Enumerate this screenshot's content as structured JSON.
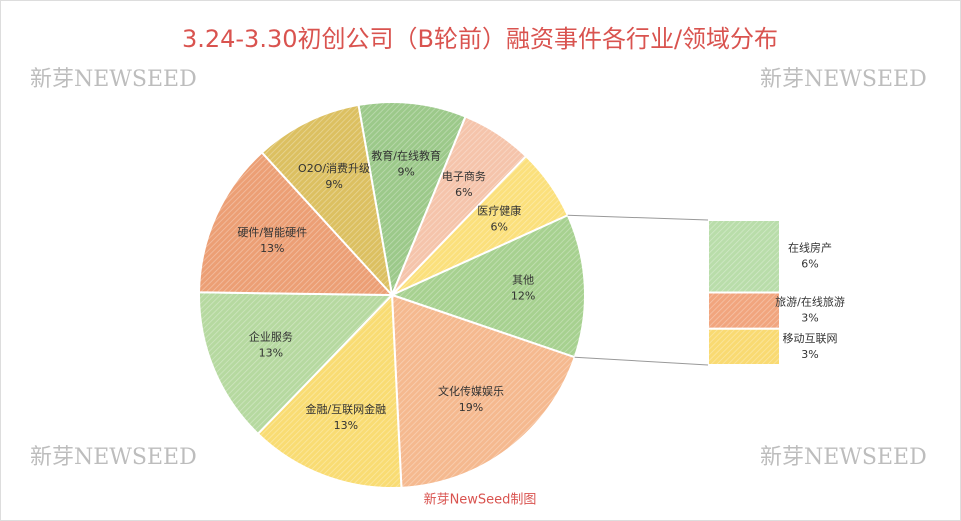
{
  "chart_data": {
    "type": "pie-of-bar",
    "title": "3.24-3.30初创公司（B轮前）融资事件各行业/领域分布",
    "categories": [
      "教育/在线教育",
      "电子商务",
      "医疗健康",
      "其他",
      "文化传媒娱乐",
      "金融/互联网金融",
      "企业服务",
      "硬件/智能硬件",
      "O2O/消费升级"
    ],
    "values": [
      9,
      6,
      6,
      12,
      19,
      13,
      13,
      13,
      9
    ],
    "value_labels": [
      "9%",
      "6%",
      "6%",
      "12%",
      "19%",
      "13%",
      "13%",
      "13%",
      "9%"
    ],
    "colors": [
      "#9cc98a",
      "#f5c4ab",
      "#fbe07c",
      "#a7d190",
      "#f5b98f",
      "#f9dc73",
      "#b6d9a0",
      "#ec9f75",
      "#dcc061"
    ],
    "breakdown": {
      "categories": [
        "在线房产",
        "旅游/在线旅游",
        "移动互联网"
      ],
      "values": [
        6,
        3,
        3
      ],
      "value_labels": [
        "6%",
        "3%",
        "3%"
      ],
      "colors": [
        "#b9ddaa",
        "#f1a57e",
        "#f9da72"
      ]
    },
    "watermark": "新芽NEWSEED",
    "source": "新芽NewSeed制图"
  }
}
